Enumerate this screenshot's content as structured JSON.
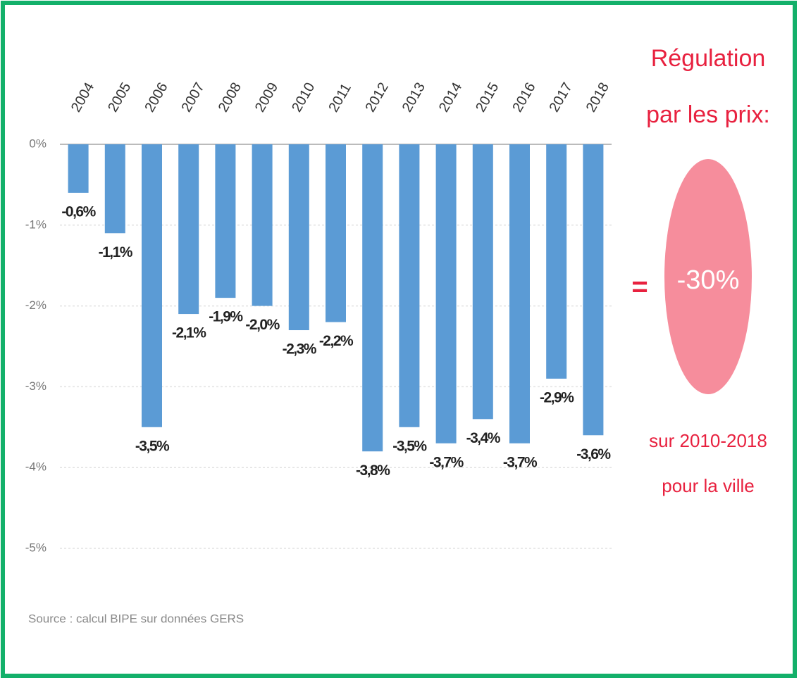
{
  "chart_data": {
    "type": "bar",
    "categories": [
      "2004",
      "2005",
      "2006",
      "2007",
      "2008",
      "2009",
      "2010",
      "2011",
      "2012",
      "2013",
      "2014",
      "2015",
      "2016",
      "2017",
      "2018"
    ],
    "values": [
      -0.6,
      -1.1,
      -3.5,
      -2.1,
      -1.9,
      -2.0,
      -2.3,
      -2.2,
      -3.8,
      -3.5,
      -3.7,
      -3.4,
      -3.7,
      -2.9,
      -3.6
    ],
    "value_labels": [
      "-0,6%",
      "-1,1%",
      "-3,5%",
      "-2,1%",
      "-1,9%",
      "-2,0%",
      "-2,3%",
      "-2,2%",
      "-3,8%",
      "-3,5%",
      "-3,7%",
      "-3,4%",
      "-3,7%",
      "-2,9%",
      "-3,6%"
    ],
    "color": "#5b9bd5",
    "ylim": [
      -5,
      0
    ],
    "yticks": [
      {
        "value": 0,
        "label": "0%"
      },
      {
        "value": -1,
        "label": "-1%"
      },
      {
        "value": -2,
        "label": "-2%"
      },
      {
        "value": -3,
        "label": "-3%"
      },
      {
        "value": -4,
        "label": "-4%"
      },
      {
        "value": -5,
        "label": "-5%"
      }
    ],
    "grid": true,
    "annotation": {
      "heading": [
        "Régulation",
        "par les prix:"
      ],
      "equals": "=",
      "total": "-30%",
      "note": [
        "sur 2010-2018",
        "pour la ville"
      ]
    },
    "source": "Source :  calcul BIPE sur données GERS"
  }
}
